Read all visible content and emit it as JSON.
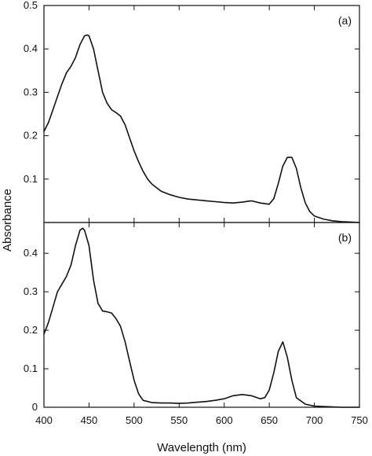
{
  "chart_data": [
    {
      "type": "line",
      "panel_label": "(a)",
      "xlabel": "Wavelength (nm)",
      "ylabel": "Absorbance",
      "xlim": [
        400,
        750
      ],
      "ylim": [
        0,
        0.5
      ],
      "x_ticks": [
        400,
        450,
        500,
        550,
        600,
        650,
        700,
        750
      ],
      "y_ticks": [
        0.1,
        0.2,
        0.3,
        0.4,
        0.5
      ],
      "y_tick_labels": [
        "0.1",
        "0.2",
        "0.3",
        "0.4",
        "0.5"
      ],
      "grid": false,
      "series": [
        {
          "x": [
            400,
            405,
            410,
            415,
            420,
            425,
            430,
            435,
            440,
            445,
            448,
            450,
            455,
            460,
            465,
            470,
            475,
            480,
            485,
            490,
            495,
            500,
            505,
            510,
            515,
            520,
            530,
            540,
            550,
            560,
            570,
            580,
            590,
            600,
            610,
            620,
            630,
            640,
            650,
            655,
            660,
            665,
            670,
            675,
            680,
            685,
            690,
            695,
            700,
            710,
            720,
            730,
            740,
            750
          ],
          "y": [
            0.21,
            0.23,
            0.26,
            0.29,
            0.32,
            0.345,
            0.36,
            0.38,
            0.41,
            0.43,
            0.432,
            0.43,
            0.4,
            0.35,
            0.3,
            0.275,
            0.26,
            0.253,
            0.245,
            0.225,
            0.195,
            0.165,
            0.14,
            0.118,
            0.1,
            0.088,
            0.072,
            0.064,
            0.058,
            0.054,
            0.052,
            0.05,
            0.048,
            0.046,
            0.045,
            0.047,
            0.05,
            0.045,
            0.042,
            0.055,
            0.09,
            0.13,
            0.15,
            0.15,
            0.125,
            0.08,
            0.045,
            0.025,
            0.015,
            0.008,
            0.004,
            0.002,
            0.001,
            0.0
          ]
        }
      ]
    },
    {
      "type": "line",
      "panel_label": "(b)",
      "xlabel": "Wavelength (nm)",
      "ylabel": "Absorbance",
      "xlim": [
        400,
        750
      ],
      "ylim": [
        0,
        0.48
      ],
      "x_ticks": [
        400,
        450,
        500,
        550,
        600,
        650,
        700,
        750
      ],
      "x_tick_labels": [
        "400",
        "450",
        "500",
        "550",
        "600",
        "650",
        "700",
        "750"
      ],
      "y_ticks": [
        0,
        0.1,
        0.2,
        0.3,
        0.4
      ],
      "y_tick_labels": [
        "0",
        "0.1",
        "0.2",
        "0.3",
        "0.4"
      ],
      "grid": false,
      "series": [
        {
          "x": [
            400,
            405,
            410,
            415,
            420,
            425,
            430,
            435,
            440,
            443,
            445,
            450,
            455,
            460,
            465,
            470,
            475,
            480,
            485,
            490,
            495,
            500,
            505,
            510,
            520,
            530,
            540,
            550,
            560,
            570,
            580,
            590,
            600,
            610,
            620,
            630,
            640,
            645,
            650,
            655,
            660,
            665,
            670,
            675,
            680,
            690,
            700,
            710,
            720,
            730,
            740,
            750
          ],
          "y": [
            0.19,
            0.22,
            0.26,
            0.3,
            0.32,
            0.34,
            0.37,
            0.42,
            0.46,
            0.465,
            0.46,
            0.42,
            0.33,
            0.27,
            0.25,
            0.248,
            0.245,
            0.23,
            0.21,
            0.17,
            0.12,
            0.07,
            0.035,
            0.018,
            0.012,
            0.011,
            0.011,
            0.01,
            0.011,
            0.013,
            0.015,
            0.018,
            0.022,
            0.03,
            0.033,
            0.03,
            0.022,
            0.025,
            0.045,
            0.09,
            0.145,
            0.17,
            0.13,
            0.07,
            0.025,
            0.008,
            0.003,
            0.002,
            0.001,
            0.0,
            0.0,
            0.0
          ]
        }
      ]
    }
  ]
}
